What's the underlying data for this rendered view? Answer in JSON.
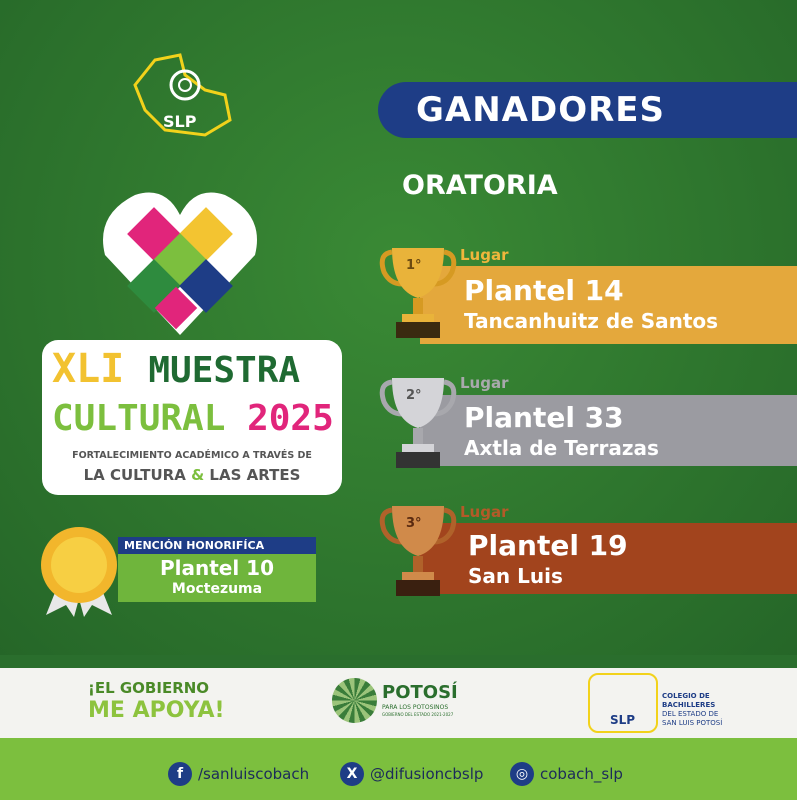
{
  "header": {
    "title": "GANADORES",
    "category": "ORATORIA"
  },
  "logo_top": {
    "text": "SLP"
  },
  "event_logo": {
    "line1a": "XLI",
    "line1b": "MUESTRA",
    "line2a": "CULTURAL",
    "line2b": "2025",
    "tagline1": "FORTALECIMIENTO ACADÉMICO A TRAVÉS DE",
    "tagline2a": "LA CULTURA",
    "amp": "&",
    "tagline2b": "LAS ARTES"
  },
  "winners": [
    {
      "place": "1°",
      "label": "Lugar",
      "plantel": "Plantel 14",
      "location": "Tancanhuitz de Santos",
      "color": "#e4a83c"
    },
    {
      "place": "2°",
      "label": "Lugar",
      "plantel": "Plantel 33",
      "location": "Axtla de Terrazas",
      "color": "#9b9ba1"
    },
    {
      "place": "3°",
      "label": "Lugar",
      "plantel": "Plantel 19",
      "location": "San Luis",
      "color": "#a2441d"
    }
  ],
  "honorable": {
    "title": "MENCIÓN HONORIFÍCA",
    "plantel": "Plantel 10",
    "location": "Moctezuma"
  },
  "footer": {
    "gov1": "¡EL GOBIERNO",
    "gov2": "ME APOYA!",
    "potosi": "POTOSÍ",
    "potosi_sub": "PARA LOS POTOSINOS",
    "potosi_sub2": "GOBIERNO DEL ESTADO 2021-2027",
    "cobach_slp": "SLP",
    "cobach1": "COLEGIO DE",
    "cobach2": "BACHILLERES",
    "cobach3": "DEL ESTADO DE",
    "cobach4": "SAN LUIS POTOSÍ",
    "social": [
      {
        "icon": "facebook-icon",
        "glyph": "f",
        "handle": "/sanluiscobach"
      },
      {
        "icon": "x-icon",
        "glyph": "X",
        "handle": "@difusioncbslp"
      },
      {
        "icon": "instagram-icon",
        "glyph": "◎",
        "handle": "cobach_slp"
      }
    ]
  }
}
